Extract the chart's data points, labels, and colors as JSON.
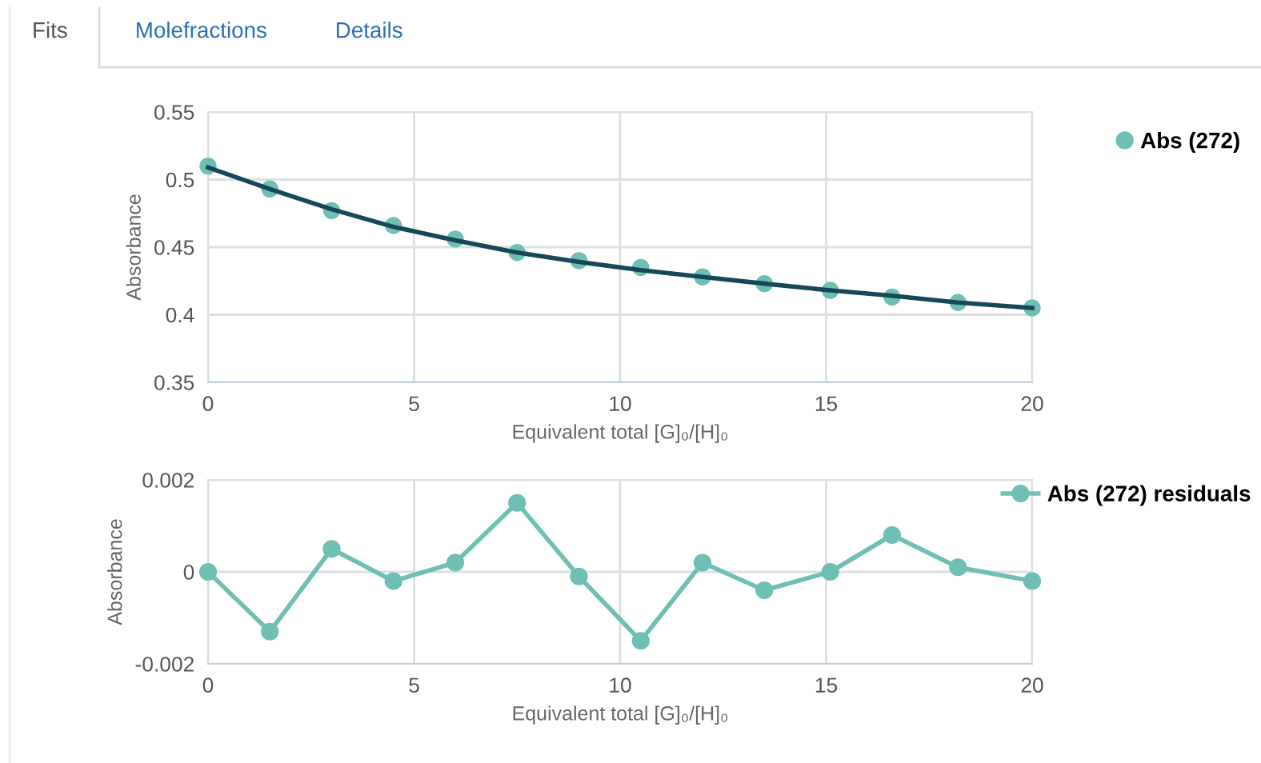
{
  "chart_data": [
    {
      "type": "scatter",
      "xlabel": "Equivalent total [G]₀/[H]₀",
      "ylabel": "Absorbance",
      "annotations": [
        "Fits",
        "Molefractions",
        "Details"
      ],
      "x": [
        0,
        1.5,
        3,
        4.5,
        6,
        7.5,
        9,
        10.5,
        12,
        13.5,
        15.1,
        16.6,
        18.2,
        20
      ],
      "series": [
        {
          "name": "Abs (272)",
          "type": "scatter",
          "color": "#6fbfb4",
          "values": [
            0.51,
            0.493,
            0.477,
            0.466,
            0.456,
            0.446,
            0.44,
            0.435,
            0.428,
            0.423,
            0.418,
            0.413,
            0.409,
            0.405
          ]
        },
        {
          "type": "line",
          "color": "#17485a",
          "marker": "none",
          "values": [
            0.509,
            0.493,
            0.478,
            0.465,
            0.455,
            0.446,
            0.439,
            0.433,
            0.428,
            0.423,
            0.418,
            0.414,
            0.409,
            0.405
          ]
        }
      ],
      "xlim": [
        0,
        20
      ],
      "xticks": [
        0,
        5,
        10,
        15,
        20
      ],
      "ylim": [
        0.35,
        0.55
      ],
      "yticks": [
        0.35,
        0.4,
        0.45,
        0.5,
        0.55
      ],
      "grid": true,
      "legend": "top right",
      "marker": "circle"
    },
    {
      "type": "line",
      "xlabel": "Equivalent total [G]₀/[H]₀",
      "ylabel": "Absorbance",
      "x": [
        0,
        1.5,
        3,
        4.5,
        6,
        7.5,
        9,
        10.5,
        12,
        13.5,
        15.1,
        16.6,
        18.2,
        20
      ],
      "series": [
        {
          "name": "Abs (272) residuals",
          "color": "#6fbfb4",
          "values": [
            0,
            -0.0013,
            0.0005,
            -0.0002,
            0.0002,
            0.0015,
            -0.0001,
            -0.0015,
            0.0002,
            -0.0004,
            0,
            0.0008,
            0.0001,
            -0.0002
          ]
        }
      ],
      "xlim": [
        0,
        20
      ],
      "xticks": [
        0,
        5,
        10,
        15,
        20
      ],
      "ylim": [
        -0.002,
        0.002
      ],
      "yticks": [
        -0.002,
        0,
        0.002
      ],
      "grid": true,
      "legend": "top right",
      "marker": "circle",
      "line_style": "solid"
    }
  ]
}
